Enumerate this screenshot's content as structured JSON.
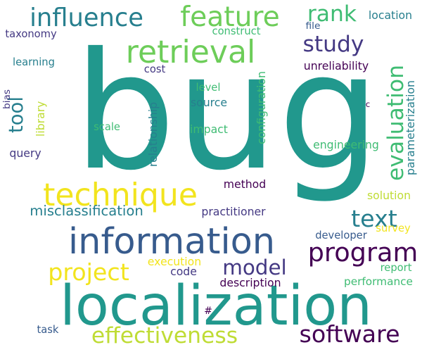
{
  "colors": {
    "background": "#ffffff",
    "yellow": "#f2e41e",
    "yellow_green": "#bfdc35",
    "light_green": "#6dcd59",
    "green": "#3fbc73",
    "teal": "#21988d",
    "blue_teal": "#277f8e",
    "steel_blue": "#375b8d",
    "indigo": "#443983",
    "dark_purple": "#440154"
  },
  "words": [
    {
      "text": "bug",
      "color": "teal"
    },
    {
      "text": "localization",
      "color": "teal"
    },
    {
      "text": "information",
      "color": "steel_blue"
    },
    {
      "text": "retrieval",
      "color": "light_green"
    },
    {
      "text": "technique",
      "color": "yellow"
    },
    {
      "text": "feature",
      "color": "light_green"
    },
    {
      "text": "influence",
      "color": "blue_teal"
    },
    {
      "text": "effectiveness",
      "color": "yellow_green"
    },
    {
      "text": "software",
      "color": "dark_purple"
    },
    {
      "text": "program",
      "color": "dark_purple"
    },
    {
      "text": "project",
      "color": "yellow"
    },
    {
      "text": "model",
      "color": "indigo"
    },
    {
      "text": "rank",
      "color": "green"
    },
    {
      "text": "study",
      "color": "indigo"
    },
    {
      "text": "text",
      "color": "blue_teal"
    },
    {
      "text": "evaluation",
      "color": "green"
    },
    {
      "text": "tool",
      "color": "blue_teal"
    },
    {
      "text": "misclassification",
      "color": "blue_teal"
    },
    {
      "text": "location",
      "color": "blue_teal"
    },
    {
      "text": "taxonomy",
      "color": "indigo"
    },
    {
      "text": "construct",
      "color": "green"
    },
    {
      "text": "file",
      "color": "steel_blue"
    },
    {
      "text": "learning",
      "color": "blue_teal"
    },
    {
      "text": "cost",
      "color": "indigo"
    },
    {
      "text": "unreliability",
      "color": "dark_purple"
    },
    {
      "text": "bias",
      "color": "indigo"
    },
    {
      "text": "library",
      "color": "yellow_green"
    },
    {
      "text": "level",
      "color": "green"
    },
    {
      "text": "source",
      "color": "blue_teal"
    },
    {
      "text": "configuration",
      "color": "green"
    },
    {
      "text": "parameterization",
      "color": "blue_teal"
    },
    {
      "text": "relationship",
      "color": "blue_teal"
    },
    {
      "text": "c",
      "color": "dark_purple"
    },
    {
      "text": "scale",
      "color": "green"
    },
    {
      "text": "impact",
      "color": "green"
    },
    {
      "text": "query",
      "color": "indigo"
    },
    {
      "text": "engineering",
      "color": "green"
    },
    {
      "text": "method",
      "color": "dark_purple"
    },
    {
      "text": "solution",
      "color": "yellow_green"
    },
    {
      "text": "practitioner",
      "color": "indigo"
    },
    {
      "text": "developer",
      "color": "steel_blue"
    },
    {
      "text": "survey",
      "color": "yellow"
    },
    {
      "text": "execution",
      "color": "yellow"
    },
    {
      "text": "code",
      "color": "indigo"
    },
    {
      "text": "report",
      "color": "green"
    },
    {
      "text": "description",
      "color": "dark_purple"
    },
    {
      "text": "performance",
      "color": "green"
    },
    {
      "text": "#",
      "color": "dark_purple"
    },
    {
      "text": "task",
      "color": "steel_blue"
    }
  ]
}
